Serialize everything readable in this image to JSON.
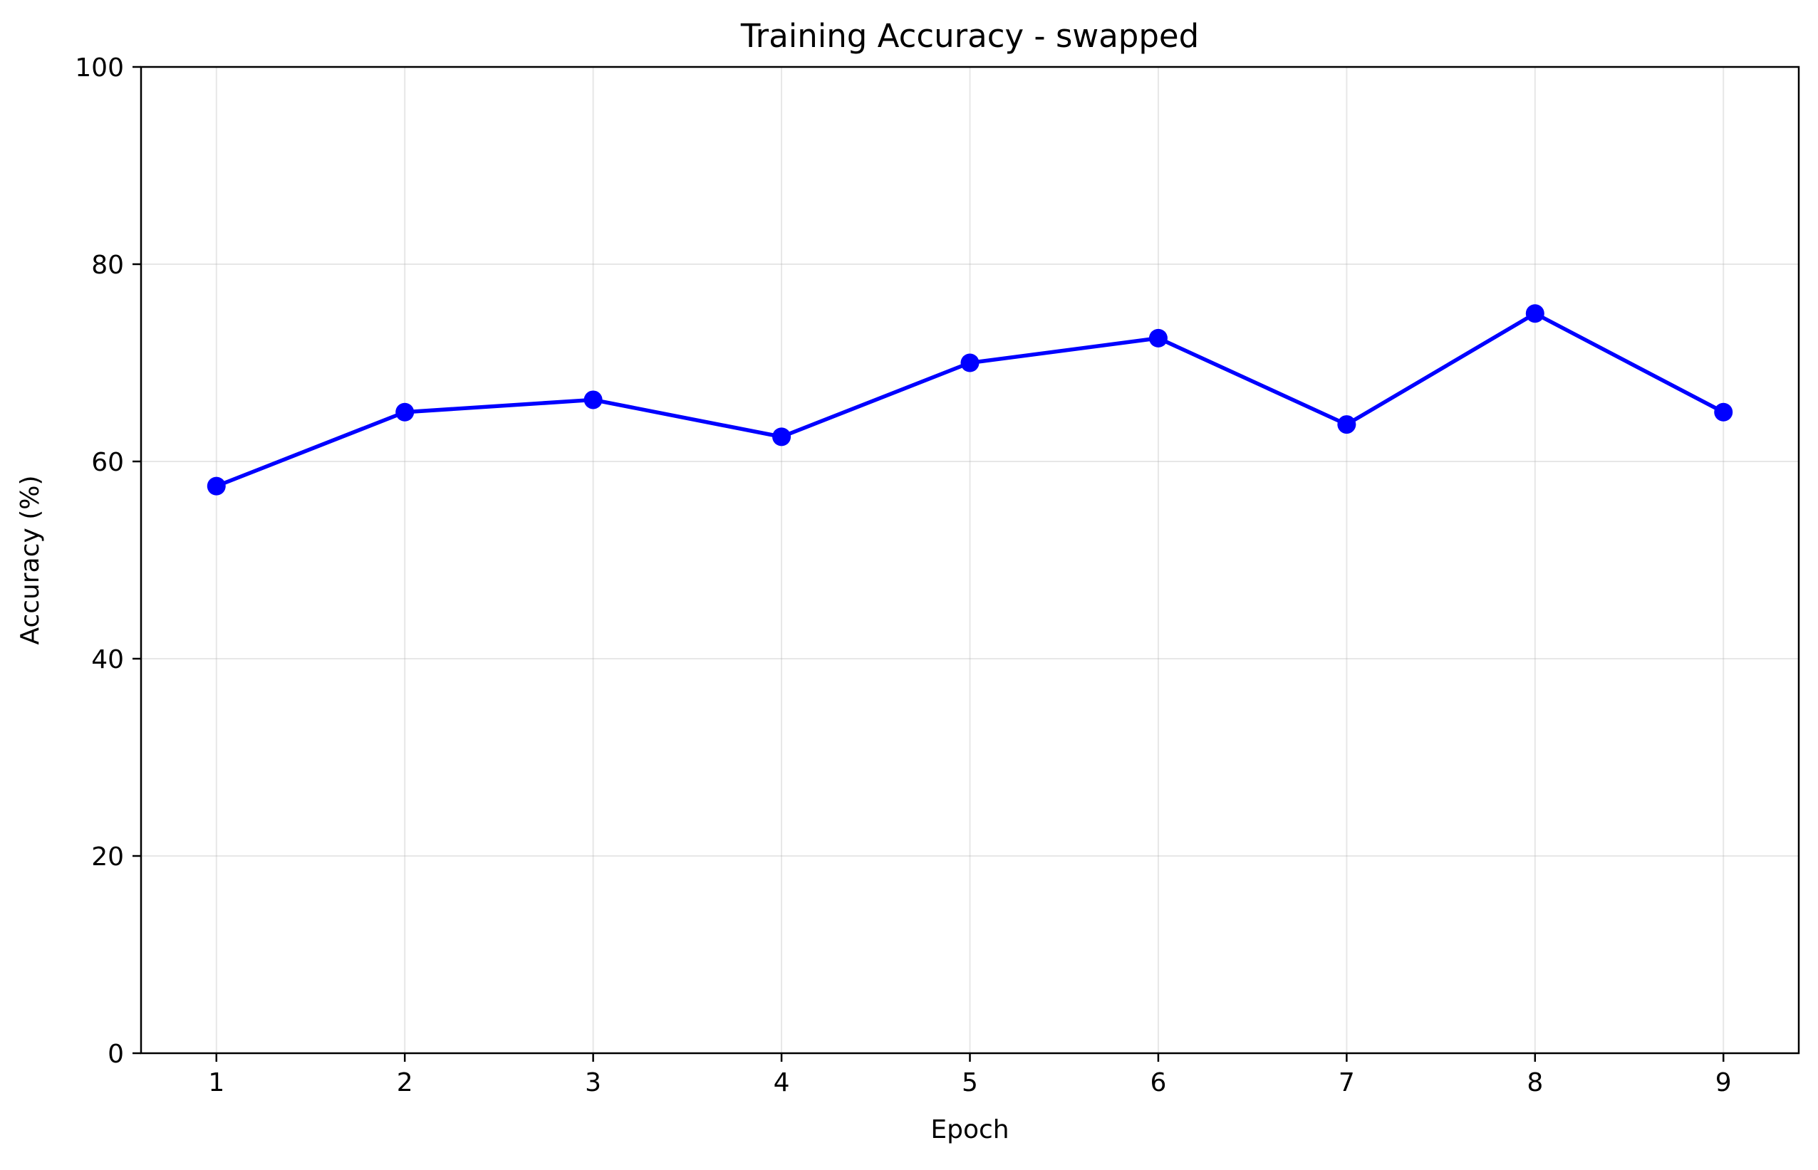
{
  "chart_data": {
    "type": "line",
    "title": "Training Accuracy - swapped",
    "xlabel": "Epoch",
    "ylabel": "Accuracy (%)",
    "x": [
      1,
      2,
      3,
      4,
      5,
      6,
      7,
      8,
      9
    ],
    "series": [
      {
        "values": [
          57.5,
          65.0,
          66.25,
          62.5,
          70.0,
          72.5,
          63.75,
          75.0,
          65.0
        ],
        "color": "#0000ff",
        "marker": "circle"
      }
    ],
    "xlim": [
      0.6,
      9.4
    ],
    "ylim": [
      0,
      100
    ],
    "xticks": [
      1,
      2,
      3,
      4,
      5,
      6,
      7,
      8,
      9
    ],
    "yticks": [
      0,
      20,
      40,
      60,
      80,
      100
    ],
    "grid": true
  }
}
